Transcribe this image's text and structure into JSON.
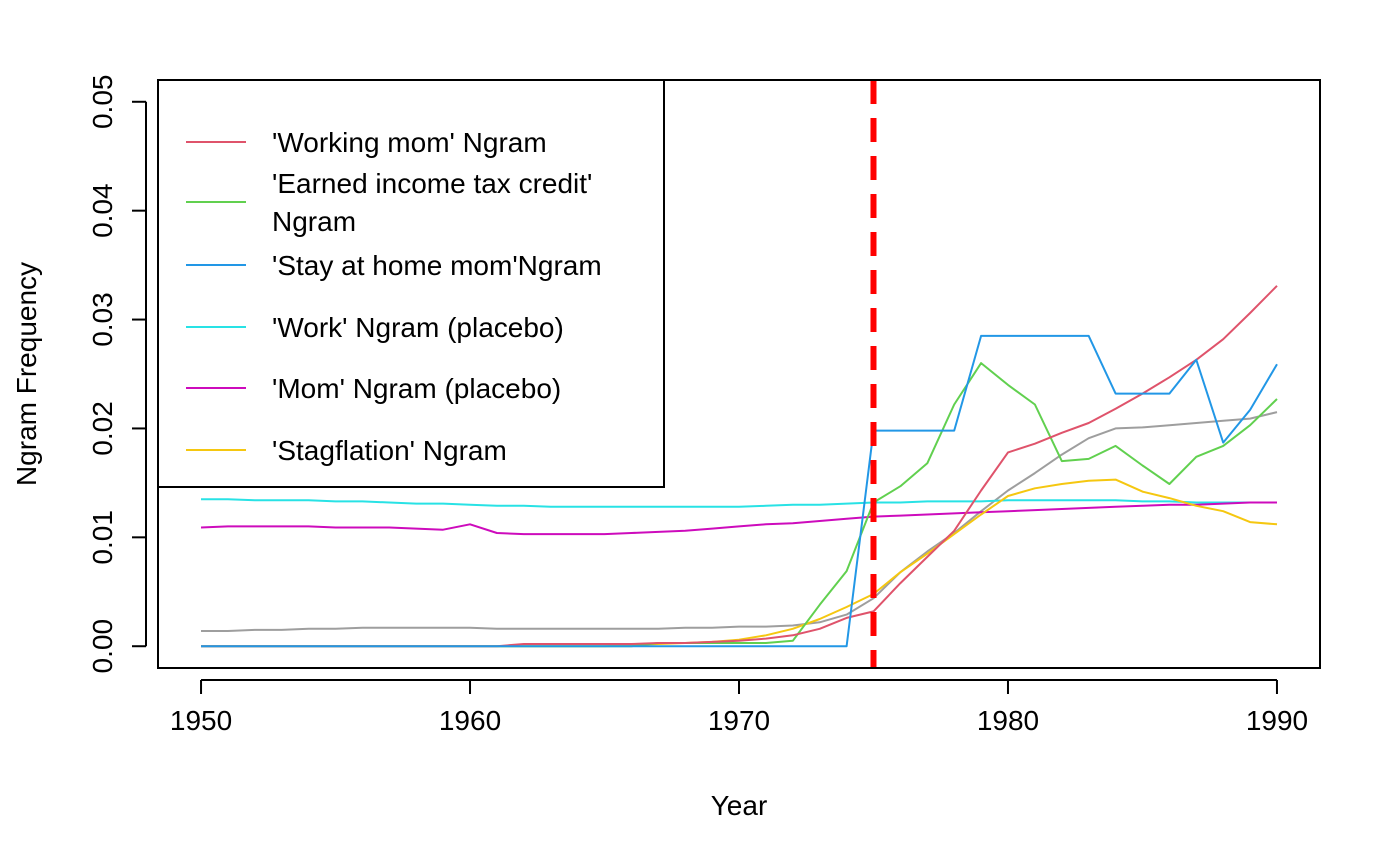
{
  "chart_data": {
    "type": "line",
    "title": "",
    "xlabel": "Year",
    "ylabel": "Ngram Frequency",
    "xlim": [
      1948.4,
      1991.6
    ],
    "ylim": [
      -0.002,
      0.052
    ],
    "xticks": [
      1950,
      1960,
      1970,
      1980,
      1990
    ],
    "yticks": [
      0.0,
      0.01,
      0.02,
      0.03,
      0.04,
      0.05
    ],
    "ytick_labels": [
      "0.00",
      "0.01",
      "0.02",
      "0.03",
      "0.04",
      "0.05"
    ],
    "vline": {
      "x": 1975,
      "color": "#ff0000",
      "style": "dashed"
    },
    "legend_position": "top-left",
    "x": [
      1950,
      1951,
      1952,
      1953,
      1954,
      1955,
      1956,
      1957,
      1958,
      1959,
      1960,
      1961,
      1962,
      1963,
      1964,
      1965,
      1966,
      1967,
      1968,
      1969,
      1970,
      1971,
      1972,
      1973,
      1974,
      1975,
      1976,
      1977,
      1978,
      1979,
      1980,
      1981,
      1982,
      1983,
      1984,
      1985,
      1986,
      1987,
      1988,
      1989,
      1990
    ],
    "series": [
      {
        "name": "'Working mom' Ngram",
        "color": "#df536b",
        "values": [
          0,
          0,
          0,
          0,
          0,
          0,
          0,
          0,
          0,
          0,
          0,
          0,
          0.0002,
          0.0002,
          0.0002,
          0.0002,
          0.0002,
          0.0003,
          0.0003,
          0.0004,
          0.0005,
          0.0007,
          0.001,
          0.0016,
          0.0026,
          0.0032,
          0.0058,
          0.0082,
          0.0106,
          0.0143,
          0.0178,
          0.0186,
          0.0196,
          0.0205,
          0.0218,
          0.0232,
          0.0247,
          0.0263,
          0.0282,
          0.0306,
          0.0331
        ]
      },
      {
        "name": "'Earned income tax credit'\n Ngram",
        "color": "#61d04f",
        "values": [
          0,
          0,
          0,
          0,
          0,
          0,
          0,
          0,
          0,
          0,
          0,
          0,
          0,
          0,
          0,
          0,
          0,
          0.0003,
          0.0003,
          0.0003,
          0.0003,
          0.0003,
          0.0005,
          0.0038,
          0.0069,
          0.0132,
          0.0147,
          0.0168,
          0.0222,
          0.026,
          0.024,
          0.0222,
          0.017,
          0.0172,
          0.0184,
          0.0166,
          0.0149,
          0.0174,
          0.0184,
          0.0203,
          0.0227
        ]
      },
      {
        "name": "'Stay at home mom'Ngram",
        "color": "#2297e6",
        "values": [
          0,
          0,
          0,
          0,
          0,
          0,
          0,
          0,
          0,
          0,
          0,
          0,
          0,
          0,
          0,
          0,
          0,
          0,
          0,
          0,
          0,
          0,
          0,
          0,
          0,
          0.0198,
          0.0198,
          0.0198,
          0.0198,
          0.0285,
          0.0285,
          0.0285,
          0.0285,
          0.0285,
          0.0232,
          0.0232,
          0.0232,
          0.0263,
          0.0187,
          0.0217,
          0.0259
        ]
      },
      {
        "name": "'Work' Ngram (placebo)",
        "color": "#28e2e5",
        "values": [
          0.0135,
          0.0135,
          0.0134,
          0.0134,
          0.0134,
          0.0133,
          0.0133,
          0.0132,
          0.0131,
          0.0131,
          0.013,
          0.0129,
          0.0129,
          0.0128,
          0.0128,
          0.0128,
          0.0128,
          0.0128,
          0.0128,
          0.0128,
          0.0128,
          0.0129,
          0.013,
          0.013,
          0.0131,
          0.0132,
          0.0132,
          0.0133,
          0.0133,
          0.0133,
          0.0134,
          0.0134,
          0.0134,
          0.0134,
          0.0134,
          0.0133,
          0.0133,
          0.0132,
          0.0132,
          0.0132,
          0.0132
        ]
      },
      {
        "name": "'Mom' Ngram (placebo)",
        "color": "#cd0bbc",
        "values": [
          0.0109,
          0.011,
          0.011,
          0.011,
          0.011,
          0.0109,
          0.0109,
          0.0109,
          0.0108,
          0.0107,
          0.0112,
          0.0104,
          0.0103,
          0.0103,
          0.0103,
          0.0103,
          0.0104,
          0.0105,
          0.0106,
          0.0108,
          0.011,
          0.0112,
          0.0113,
          0.0115,
          0.0117,
          0.0119,
          0.012,
          0.0121,
          0.0122,
          0.0123,
          0.0124,
          0.0125,
          0.0126,
          0.0127,
          0.0128,
          0.0129,
          0.013,
          0.013,
          0.0131,
          0.0132,
          0.0132
        ]
      },
      {
        "name": "'Stagflation' Ngram",
        "color": "#f5c710",
        "values": [
          0,
          0,
          0,
          0,
          0,
          0,
          0,
          0,
          0,
          0,
          0,
          0,
          0,
          0,
          0,
          0,
          0.0001,
          0.0002,
          0.0003,
          0.0004,
          0.0006,
          0.001,
          0.0016,
          0.0025,
          0.0036,
          0.0048,
          0.0068,
          0.0085,
          0.0103,
          0.0121,
          0.0138,
          0.0145,
          0.0149,
          0.0152,
          0.0153,
          0.0142,
          0.0136,
          0.0129,
          0.0124,
          0.0114,
          0.0112
        ]
      },
      {
        "name": "",
        "color": "#9e9e9e",
        "values": [
          0.0014,
          0.0014,
          0.0015,
          0.0015,
          0.0016,
          0.0016,
          0.0017,
          0.0017,
          0.0017,
          0.0017,
          0.0017,
          0.0016,
          0.0016,
          0.0016,
          0.0016,
          0.0016,
          0.0016,
          0.0016,
          0.0017,
          0.0017,
          0.0018,
          0.0018,
          0.0019,
          0.0022,
          0.0029,
          0.0044,
          0.0068,
          0.0087,
          0.0104,
          0.0124,
          0.0143,
          0.0159,
          0.0176,
          0.0191,
          0.02,
          0.0201,
          0.0203,
          0.0205,
          0.0207,
          0.0209,
          0.0215
        ]
      }
    ]
  }
}
